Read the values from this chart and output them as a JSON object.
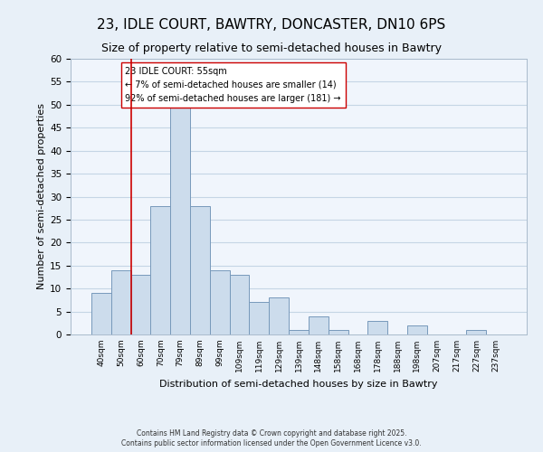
{
  "title": "23, IDLE COURT, BAWTRY, DONCASTER, DN10 6PS",
  "subtitle": "Size of property relative to semi-detached houses in Bawtry",
  "xlabel": "Distribution of semi-detached houses by size in Bawtry",
  "ylabel": "Number of semi-detached properties",
  "bar_labels": [
    "40sqm",
    "50sqm",
    "60sqm",
    "70sqm",
    "79sqm",
    "89sqm",
    "99sqm",
    "109sqm",
    "119sqm",
    "129sqm",
    "139sqm",
    "148sqm",
    "158sqm",
    "168sqm",
    "178sqm",
    "188sqm",
    "198sqm",
    "207sqm",
    "217sqm",
    "227sqm",
    "237sqm"
  ],
  "bar_heights": [
    9,
    14,
    13,
    28,
    50,
    28,
    14,
    13,
    7,
    8,
    1,
    4,
    1,
    0,
    3,
    0,
    2,
    0,
    0,
    1,
    0
  ],
  "bar_color": "#ccdcec",
  "bar_edge_color": "#7799bb",
  "grid_color": "#c5d5e5",
  "background_color": "#e8f0f8",
  "plot_bg_color": "#f0f5fc",
  "annotation_box_text": "23 IDLE COURT: 55sqm\n← 7% of semi-detached houses are smaller (14)\n92% of semi-detached houses are larger (181) →",
  "vline_color": "#cc0000",
  "vline_x_bin": 1.5,
  "ylim": [
    0,
    60
  ],
  "yticks": [
    0,
    5,
    10,
    15,
    20,
    25,
    30,
    35,
    40,
    45,
    50,
    55,
    60
  ],
  "footer_line1": "Contains HM Land Registry data © Crown copyright and database right 2025.",
  "footer_line2": "Contains public sector information licensed under the Open Government Licence v3.0.",
  "title_fontsize": 11,
  "subtitle_fontsize": 9
}
